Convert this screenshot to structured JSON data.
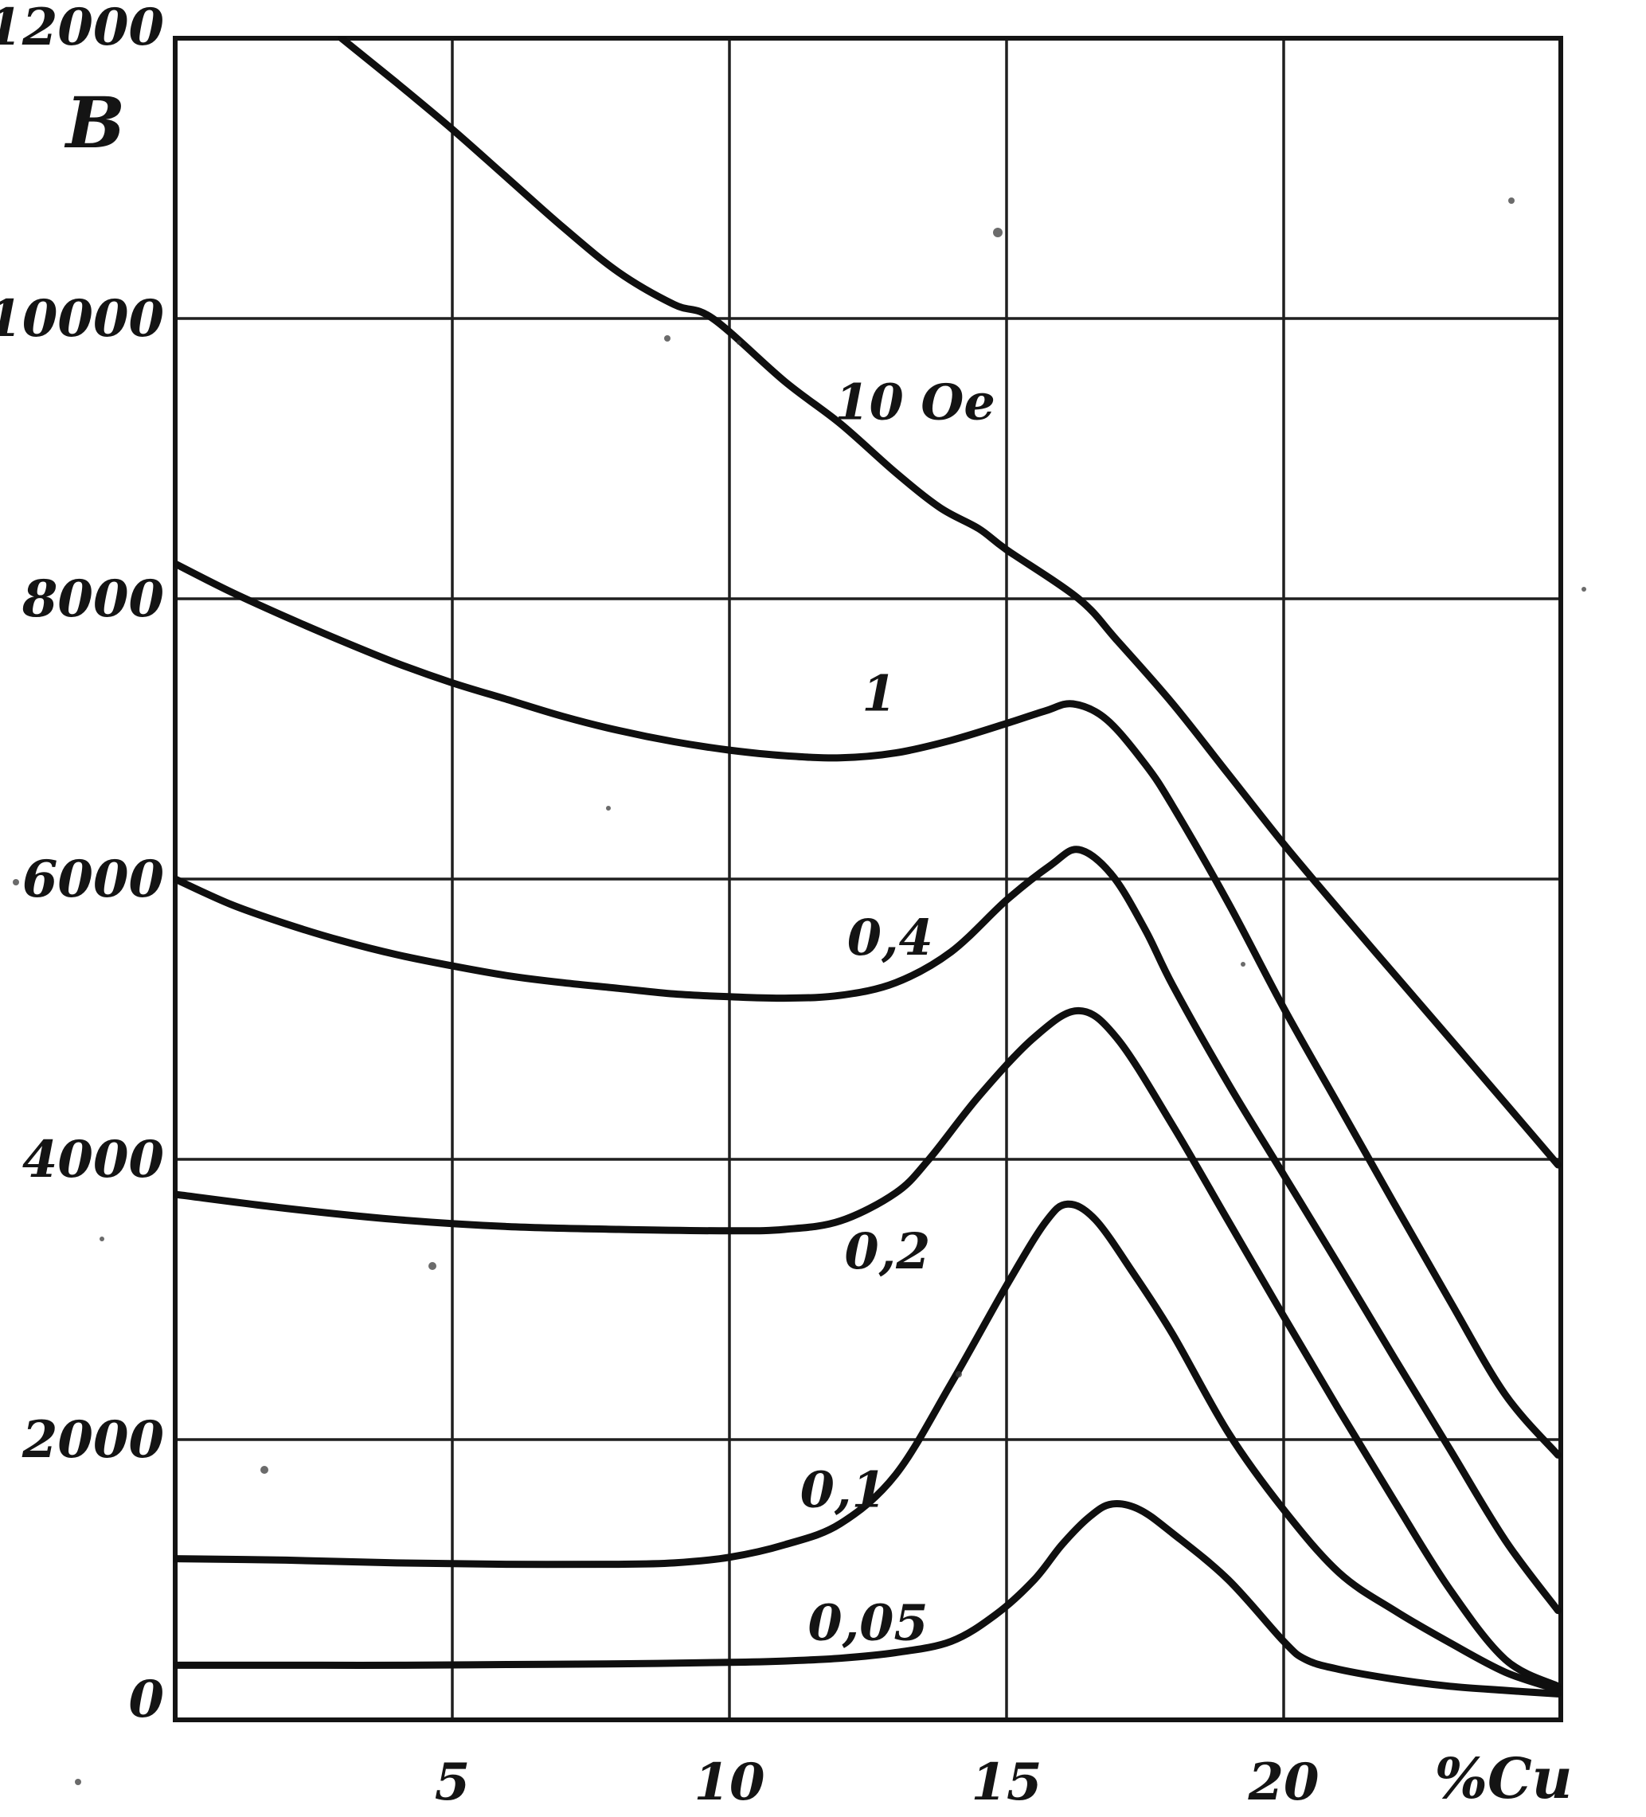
{
  "figure": {
    "background": "#ffffff",
    "ink": "#141414",
    "grid_color": "#1f1f1f",
    "curve_color": "#0f0f0f"
  },
  "chart_data": {
    "type": "line",
    "title": "",
    "xlabel": "%Cu",
    "ylabel": "B",
    "xlim": [
      0,
      25
    ],
    "ylim": [
      0,
      12000
    ],
    "grid": true,
    "legend_position": "inline-curve-labels",
    "x_ticks": [
      5,
      10,
      15,
      20
    ],
    "x_tick_labels": [
      "5",
      "10",
      "15",
      "20"
    ],
    "y_ticks": [
      0,
      2000,
      4000,
      6000,
      8000,
      10000,
      12000
    ],
    "y_tick_labels": [
      "0",
      "2000",
      "4000",
      "6000",
      "8000",
      "10000",
      "12000"
    ],
    "series": [
      {
        "name": "10 Oe",
        "label": "10 Oe",
        "slug": "curve-10oe",
        "label_pos": [
          13.35,
          9400
        ],
        "points": [
          [
            3.0,
            12000
          ],
          [
            4,
            11680
          ],
          [
            5,
            11350
          ],
          [
            6,
            11000
          ],
          [
            7,
            10650
          ],
          [
            8,
            10330
          ],
          [
            9,
            10100
          ],
          [
            9.7,
            10000
          ],
          [
            11,
            9550
          ],
          [
            12,
            9250
          ],
          [
            13,
            8900
          ],
          [
            13.8,
            8650
          ],
          [
            14.5,
            8500
          ],
          [
            15,
            8350
          ],
          [
            16.3,
            8000
          ],
          [
            17,
            7700
          ],
          [
            18,
            7250
          ],
          [
            19,
            6750
          ],
          [
            20,
            6250
          ],
          [
            21,
            5780
          ],
          [
            22,
            5320
          ],
          [
            23,
            4860
          ],
          [
            24,
            4400
          ],
          [
            24.95,
            3960
          ]
        ]
      },
      {
        "name": "1",
        "label": "1",
        "slug": "curve-1",
        "label_pos": [
          12.7,
          7320
        ],
        "points": [
          [
            0,
            8250
          ],
          [
            1,
            8050
          ],
          [
            2,
            7870
          ],
          [
            3,
            7700
          ],
          [
            4,
            7540
          ],
          [
            5,
            7400
          ],
          [
            6,
            7280
          ],
          [
            7,
            7160
          ],
          [
            8,
            7060
          ],
          [
            9,
            6980
          ],
          [
            10,
            6920
          ],
          [
            11,
            6880
          ],
          [
            12,
            6865
          ],
          [
            13,
            6900
          ],
          [
            14,
            6990
          ],
          [
            15,
            7110
          ],
          [
            15.7,
            7200
          ],
          [
            16.2,
            7250
          ],
          [
            16.8,
            7140
          ],
          [
            17.5,
            6820
          ],
          [
            18,
            6520
          ],
          [
            19,
            5830
          ],
          [
            20,
            5080
          ],
          [
            21,
            4380
          ],
          [
            22,
            3680
          ],
          [
            23,
            2990
          ],
          [
            24,
            2320
          ],
          [
            24.95,
            1890
          ]
        ]
      },
      {
        "name": "0,4",
        "label": "0,4",
        "slug": "curve-04",
        "label_pos": [
          12.9,
          5580
        ],
        "points": [
          [
            0,
            6000
          ],
          [
            1,
            5820
          ],
          [
            2,
            5680
          ],
          [
            3,
            5560
          ],
          [
            4,
            5460
          ],
          [
            5,
            5380
          ],
          [
            6,
            5310
          ],
          [
            7,
            5260
          ],
          [
            8,
            5220
          ],
          [
            9,
            5180
          ],
          [
            10,
            5160
          ],
          [
            11,
            5150
          ],
          [
            12,
            5170
          ],
          [
            13,
            5260
          ],
          [
            14,
            5480
          ],
          [
            15,
            5850
          ],
          [
            15.8,
            6100
          ],
          [
            16.3,
            6210
          ],
          [
            16.9,
            6030
          ],
          [
            17.5,
            5640
          ],
          [
            18,
            5240
          ],
          [
            19,
            4540
          ],
          [
            20,
            3890
          ],
          [
            21,
            3240
          ],
          [
            22,
            2580
          ],
          [
            23,
            1930
          ],
          [
            24,
            1280
          ],
          [
            24.95,
            780
          ]
        ]
      },
      {
        "name": "0,2",
        "label": "0,2",
        "slug": "curve-02",
        "label_pos": [
          12.85,
          3340
        ],
        "points": [
          [
            0,
            3750
          ],
          [
            2,
            3650
          ],
          [
            4,
            3570
          ],
          [
            6,
            3520
          ],
          [
            8,
            3500
          ],
          [
            10,
            3490
          ],
          [
            11,
            3500
          ],
          [
            12,
            3560
          ],
          [
            13,
            3760
          ],
          [
            13.6,
            4000
          ],
          [
            14.5,
            4450
          ],
          [
            15.5,
            4870
          ],
          [
            16.3,
            5060
          ],
          [
            17,
            4860
          ],
          [
            18,
            4240
          ],
          [
            19,
            3560
          ],
          [
            20,
            2880
          ],
          [
            21,
            2210
          ],
          [
            22,
            1560
          ],
          [
            23,
            930
          ],
          [
            24,
            430
          ],
          [
            24.95,
            240
          ]
        ]
      },
      {
        "name": "0,1",
        "label": "0,1",
        "slug": "curve-01",
        "label_pos": [
          12.05,
          1640
        ],
        "points": [
          [
            0,
            1150
          ],
          [
            2,
            1140
          ],
          [
            4,
            1120
          ],
          [
            6,
            1110
          ],
          [
            8,
            1110
          ],
          [
            9,
            1120
          ],
          [
            10,
            1160
          ],
          [
            11,
            1250
          ],
          [
            12,
            1400
          ],
          [
            13,
            1750
          ],
          [
            14,
            2400
          ],
          [
            15,
            3100
          ],
          [
            15.7,
            3550
          ],
          [
            16.1,
            3680
          ],
          [
            16.6,
            3570
          ],
          [
            17.3,
            3180
          ],
          [
            18,
            2750
          ],
          [
            19,
            2050
          ],
          [
            20,
            1500
          ],
          [
            21,
            1050
          ],
          [
            22,
            780
          ],
          [
            23,
            550
          ],
          [
            24,
            340
          ],
          [
            24.95,
            215
          ]
        ]
      },
      {
        "name": "0,05",
        "label": "0,05",
        "slug": "curve-005",
        "label_pos": [
          12.5,
          690
        ],
        "points": [
          [
            0,
            390
          ],
          [
            2,
            390
          ],
          [
            4,
            390
          ],
          [
            6,
            395
          ],
          [
            8,
            400
          ],
          [
            10,
            410
          ],
          [
            11,
            420
          ],
          [
            12,
            440
          ],
          [
            13,
            480
          ],
          [
            14,
            560
          ],
          [
            14.8,
            750
          ],
          [
            15.5,
            1000
          ],
          [
            16,
            1250
          ],
          [
            16.5,
            1450
          ],
          [
            16.9,
            1540
          ],
          [
            17.4,
            1500
          ],
          [
            18,
            1330
          ],
          [
            19,
            1000
          ],
          [
            20,
            560
          ],
          [
            20.4,
            430
          ],
          [
            21,
            360
          ],
          [
            22,
            290
          ],
          [
            23,
            240
          ],
          [
            24,
            210
          ],
          [
            24.95,
            185
          ]
        ]
      }
    ]
  }
}
